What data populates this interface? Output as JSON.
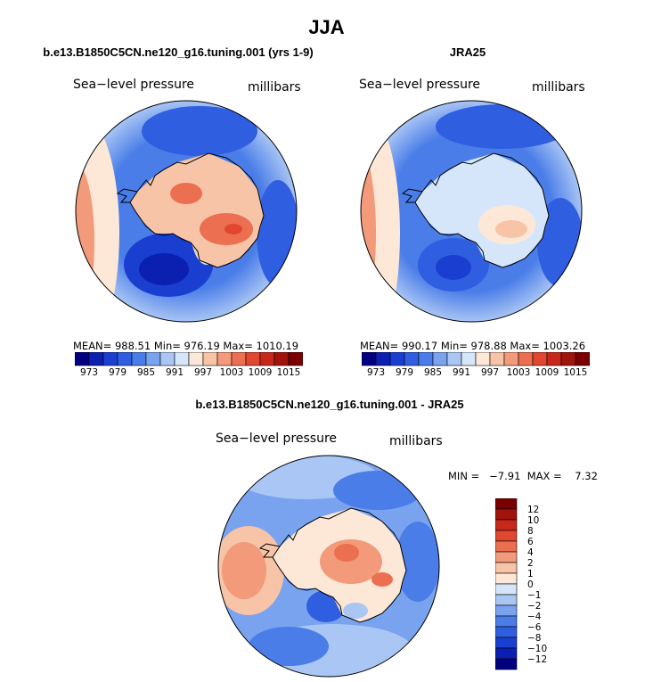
{
  "title": "JJA",
  "colors": {
    "cool": [
      "#000080",
      "#0b1fb0",
      "#1a3fd0",
      "#2f5ee0",
      "#4a7de8",
      "#7aa3ef",
      "#aac6f4",
      "#d6e6fa"
    ],
    "warm": [
      "#fde8d8",
      "#f8c4a8",
      "#f29a7a",
      "#eb6f50",
      "#e04630",
      "#c8281a",
      "#a0140c",
      "#7a0000"
    ],
    "diff": [
      "#000080",
      "#0b1fb0",
      "#1a3fd0",
      "#2f5ee0",
      "#4a7de8",
      "#7aa3ef",
      "#aac6f4",
      "#d6e6fa",
      "#fde8d8",
      "#f8c4a8",
      "#f29a7a",
      "#eb6f50",
      "#e04630",
      "#c8281a",
      "#a0140c",
      "#7a0000"
    ]
  },
  "chart_data": [
    {
      "type": "heatmap",
      "projection": "polar-stereographic",
      "title": "b.e13.B1850C5CN.ne120_g16.tuning.001 (yrs 1-9)",
      "variable": "Sea−level pressure",
      "units": "millibars",
      "stats": {
        "mean": "988.51",
        "min": "976.19",
        "max": "1010.19"
      },
      "stats_text": "MEAN= 988.51   Min= 976.19   Max= 1010.19",
      "colorbar_ticks": [
        "973",
        "979",
        "985",
        "991",
        "997",
        "1003",
        "1009",
        "1015"
      ],
      "colorbar_levels": [
        973,
        976,
        979,
        982,
        985,
        988,
        991,
        994,
        997,
        1000,
        1003,
        1006,
        1009,
        1012,
        1015
      ]
    },
    {
      "type": "heatmap",
      "projection": "polar-stereographic",
      "title": "JRA25",
      "variable": "Sea−level pressure",
      "units": "millibars",
      "stats": {
        "mean": "990.17",
        "min": "978.88",
        "max": "1003.26"
      },
      "stats_text": "MEAN= 990.17   Min= 978.88   Max= 1003.26",
      "colorbar_ticks": [
        "973",
        "979",
        "985",
        "991",
        "997",
        "1003",
        "1009",
        "1015"
      ],
      "colorbar_levels": [
        973,
        976,
        979,
        982,
        985,
        988,
        991,
        994,
        997,
        1000,
        1003,
        1006,
        1009,
        1012,
        1015
      ]
    },
    {
      "type": "heatmap",
      "projection": "polar-stereographic",
      "title": "b.e13.B1850C5CN.ne120_g16.tuning.001 - JRA25",
      "variable": "Sea−level pressure",
      "units": "millibars",
      "stats": {
        "min": "−7.91",
        "max": "7.32"
      },
      "stats_text": "MIN =   −7.91  MAX =    7.32",
      "colorbar_ticks": [
        "12",
        "10",
        "8",
        "6",
        "4",
        "2",
        "1",
        "0",
        "−1",
        "−2",
        "−4",
        "−6",
        "−8",
        "−10",
        "−12"
      ],
      "colorbar_levels": [
        -12,
        -10,
        -8,
        -6,
        -4,
        -2,
        -1,
        0,
        1,
        2,
        4,
        6,
        8,
        10,
        12
      ]
    }
  ]
}
